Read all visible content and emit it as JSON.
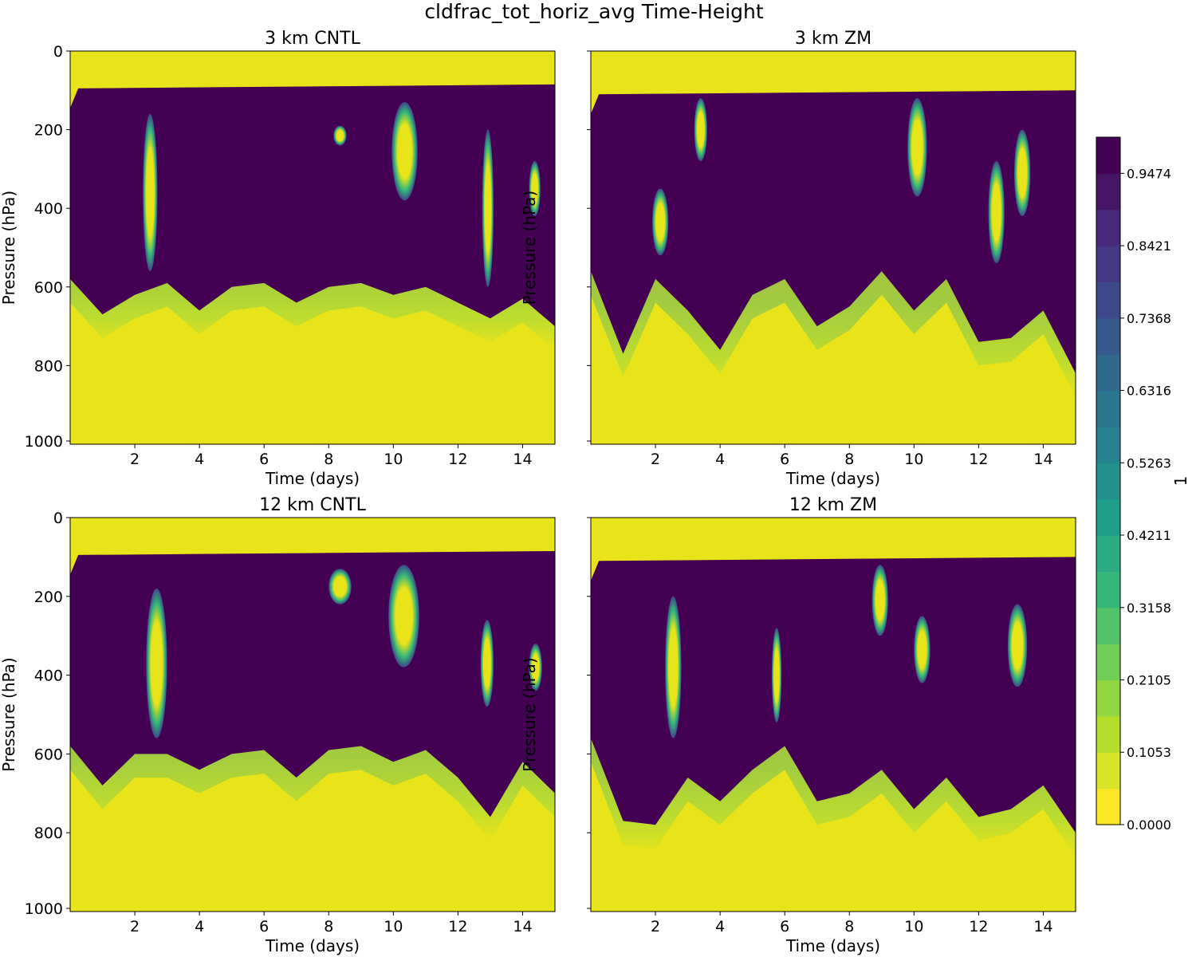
{
  "figure_title": "cldfrac_tot_horiz_avg Time-Height",
  "colors": {
    "viridis": [
      "#440154",
      "#482878",
      "#3e4989",
      "#31688e",
      "#26828e",
      "#1f9e89",
      "#35b779",
      "#6ece58",
      "#b5de2b",
      "#fde725"
    ],
    "cloud_dark": "#440154",
    "clear_yellow": "#e8e419"
  },
  "chart_data": [
    {
      "type": "heatmap",
      "title": "3 km CNTL",
      "xlabel": "Time (days)",
      "ylabel": "Pressure (hPa)",
      "xlim": [
        0,
        15
      ],
      "ylim": [
        1000,
        0
      ],
      "xticks": [
        "2",
        "4",
        "6",
        "8",
        "10",
        "12",
        "14"
      ],
      "yticks": [
        "0",
        "200",
        "400",
        "600",
        "800",
        "1000"
      ],
      "z_variable": "cldfrac_tot_horiz_avg",
      "cloud_top_hPa": 85,
      "cloud_base_hPa": [
        640,
        730,
        680,
        650,
        720,
        660,
        650,
        700,
        660,
        650,
        680,
        660,
        700,
        740,
        690,
        760
      ],
      "clear_gaps": [
        {
          "t0": 2.25,
          "t1": 2.7,
          "p_top": 160,
          "p_bot": 560
        },
        {
          "t0": 8.15,
          "t1": 8.55,
          "p_top": 190,
          "p_bot": 240
        },
        {
          "t0": 9.95,
          "t1": 10.75,
          "p_top": 130,
          "p_bot": 380
        },
        {
          "t0": 12.75,
          "t1": 13.1,
          "p_top": 200,
          "p_bot": 600
        },
        {
          "t0": 14.2,
          "t1": 14.55,
          "p_top": 280,
          "p_bot": 420
        }
      ]
    },
    {
      "type": "heatmap",
      "title": "3 km ZM",
      "xlabel": "Time (days)",
      "ylabel": "Pressure (hPa)",
      "xlim": [
        0,
        15
      ],
      "ylim": [
        1000,
        0
      ],
      "xticks": [
        "2",
        "4",
        "6",
        "8",
        "10",
        "12",
        "14"
      ],
      "yticks": [
        "",
        "",
        "",
        "",
        "",
        ""
      ],
      "z_variable": "cldfrac_tot_horiz_avg",
      "cloud_top_hPa": 100,
      "cloud_base_hPa": [
        620,
        830,
        640,
        720,
        820,
        680,
        640,
        760,
        710,
        620,
        720,
        640,
        800,
        790,
        720,
        880
      ],
      "clear_gaps": [
        {
          "t0": 1.9,
          "t1": 2.4,
          "p_top": 350,
          "p_bot": 520
        },
        {
          "t0": 3.2,
          "t1": 3.6,
          "p_top": 120,
          "p_bot": 280
        },
        {
          "t0": 9.8,
          "t1": 10.4,
          "p_top": 120,
          "p_bot": 370
        },
        {
          "t0": 12.3,
          "t1": 12.8,
          "p_top": 280,
          "p_bot": 540
        },
        {
          "t0": 13.1,
          "t1": 13.6,
          "p_top": 200,
          "p_bot": 420
        }
      ]
    },
    {
      "type": "heatmap",
      "title": "12 km CNTL",
      "xlabel": "Time (days)",
      "ylabel": "Pressure (hPa)",
      "xlim": [
        0,
        15
      ],
      "ylim": [
        1000,
        0
      ],
      "xticks": [
        "2",
        "4",
        "6",
        "8",
        "10",
        "12",
        "14"
      ],
      "yticks": [
        "0",
        "200",
        "400",
        "600",
        "800",
        "1000"
      ],
      "z_variable": "cldfrac_tot_horiz_avg",
      "cloud_top_hPa": 85,
      "cloud_base_hPa": [
        640,
        740,
        660,
        660,
        700,
        660,
        650,
        720,
        650,
        640,
        680,
        650,
        720,
        820,
        680,
        760
      ],
      "clear_gaps": [
        {
          "t0": 2.35,
          "t1": 3.0,
          "p_top": 180,
          "p_bot": 560
        },
        {
          "t0": 8.0,
          "t1": 8.7,
          "p_top": 130,
          "p_bot": 220
        },
        {
          "t0": 9.85,
          "t1": 10.8,
          "p_top": 120,
          "p_bot": 380
        },
        {
          "t0": 12.7,
          "t1": 13.1,
          "p_top": 260,
          "p_bot": 480
        },
        {
          "t0": 14.2,
          "t1": 14.6,
          "p_top": 320,
          "p_bot": 440
        }
      ]
    },
    {
      "type": "heatmap",
      "title": "12 km ZM",
      "xlabel": "Time (days)",
      "ylabel": "Pressure (hPa)",
      "xlim": [
        0,
        15
      ],
      "ylim": [
        1000,
        0
      ],
      "xticks": [
        "2",
        "4",
        "6",
        "8",
        "10",
        "12",
        "14"
      ],
      "yticks": [
        "",
        "",
        "",
        "",
        "",
        ""
      ],
      "z_variable": "cldfrac_tot_horiz_avg",
      "cloud_top_hPa": 100,
      "cloud_base_hPa": [
        620,
        830,
        840,
        720,
        780,
        700,
        640,
        780,
        760,
        700,
        800,
        720,
        820,
        800,
        740,
        860
      ],
      "clear_gaps": [
        {
          "t0": 2.3,
          "t1": 2.8,
          "p_top": 200,
          "p_bot": 560
        },
        {
          "t0": 5.6,
          "t1": 5.9,
          "p_top": 280,
          "p_bot": 520
        },
        {
          "t0": 8.7,
          "t1": 9.2,
          "p_top": 120,
          "p_bot": 300
        },
        {
          "t0": 10.0,
          "t1": 10.5,
          "p_top": 250,
          "p_bot": 420
        },
        {
          "t0": 12.9,
          "t1": 13.5,
          "p_top": 220,
          "p_bot": 430
        }
      ]
    }
  ],
  "colorbar": {
    "label": "1",
    "min": 0,
    "max": 1,
    "n_levels": 19,
    "tick_values": [
      0.0,
      0.1053,
      0.2105,
      0.3158,
      0.4211,
      0.5263,
      0.6316,
      0.7368,
      0.8421,
      0.9474
    ],
    "tick_labels": [
      "0.0000",
      "0.1053",
      "0.2105",
      "0.3158",
      "0.4211",
      "0.5263",
      "0.6316",
      "0.7368",
      "0.8421",
      "0.9474"
    ]
  }
}
